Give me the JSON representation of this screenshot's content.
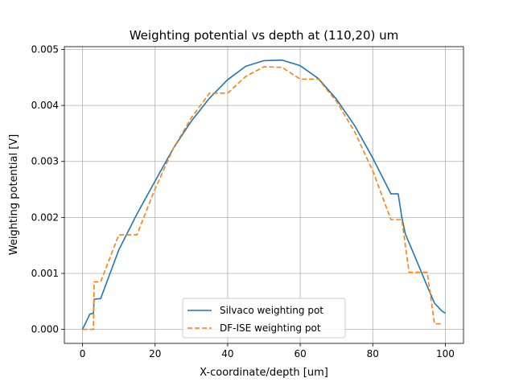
{
  "chart_data": {
    "type": "line",
    "title": "Weighting potential vs depth at (110,20) um",
    "xlabel": "X-coordinate/depth [um]",
    "ylabel": "Weighting potential [V]",
    "xlim": [
      -5,
      105
    ],
    "ylim": [
      -0.00025,
      0.00505
    ],
    "grid": true,
    "legend_position": "lower-center",
    "x_ticks": [
      0,
      20,
      40,
      60,
      80,
      100
    ],
    "x_tick_labels": [
      "0",
      "20",
      "40",
      "60",
      "80",
      "100"
    ],
    "y_ticks": [
      0,
      0.001,
      0.002,
      0.003,
      0.004,
      0.005
    ],
    "y_tick_labels": [
      "0.000",
      "0.001",
      "0.002",
      "0.003",
      "0.004",
      "0.005"
    ],
    "series": [
      {
        "name": "Silvaco weighting pot",
        "color": "#1f77b4",
        "linestyle": "solid",
        "x": [
          0,
          2,
          3,
          3.2,
          5,
          10,
          15,
          20,
          25,
          30,
          35,
          40,
          45,
          50,
          55,
          60,
          65,
          70,
          75,
          80,
          85,
          86.5,
          87,
          88,
          89,
          92,
          95,
          97,
          99,
          100
        ],
        "y": [
          0,
          0.00027,
          0.00029,
          0.00054,
          0.00055,
          0.00142,
          0.00206,
          0.00265,
          0.00323,
          0.00372,
          0.00413,
          0.00446,
          0.0047,
          0.0048,
          0.00481,
          0.00471,
          0.00448,
          0.00411,
          0.00364,
          0.00306,
          0.00242,
          0.00242,
          0.00242,
          0.002,
          0.0017,
          0.00124,
          0.00077,
          0.00047,
          0.00033,
          0.00029
        ]
      },
      {
        "name": "DF-ISE weighting pot",
        "color": "#ff7f0e",
        "linestyle": "dashed",
        "x": [
          0,
          3,
          3.2,
          5,
          10,
          15,
          20,
          25,
          30,
          35,
          40,
          45,
          50,
          55,
          60,
          65,
          70,
          75,
          80,
          85,
          86,
          88,
          90,
          93,
          95,
          97,
          99
        ],
        "y": [
          0,
          0,
          0.00085,
          0.00085,
          0.00169,
          0.00169,
          0.00251,
          0.00323,
          0.00378,
          0.00422,
          0.00422,
          0.00452,
          0.00469,
          0.00468,
          0.00447,
          0.00447,
          0.00407,
          0.00353,
          0.00283,
          0.00196,
          0.00196,
          0.00196,
          0.00102,
          0.00102,
          0.00102,
          0.0001,
          0.0001
        ]
      }
    ]
  }
}
